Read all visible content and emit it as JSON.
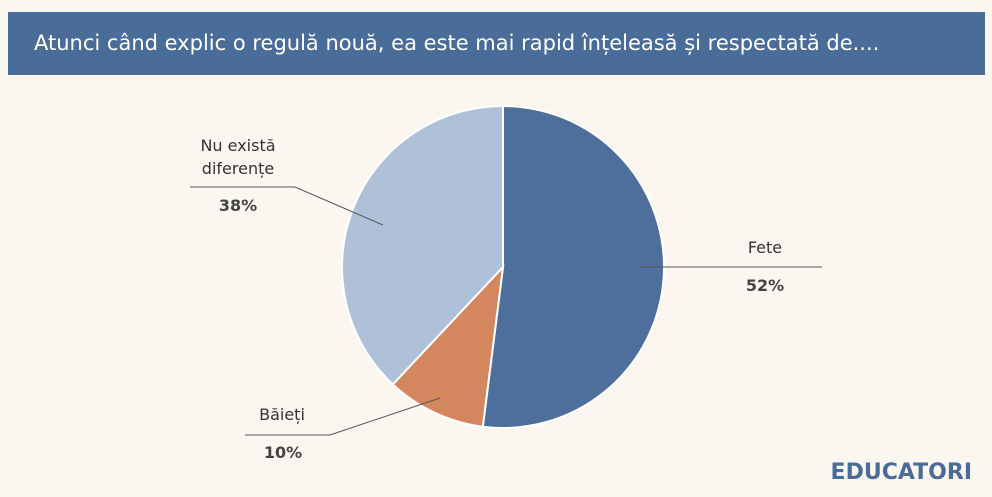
{
  "chart_data": {
    "type": "pie",
    "title": "Atunci când explic o regulă nouă, ea este mai rapid înțeleasă și respectată de....",
    "categories": [
      "Fete",
      "Băieți",
      "Nu există diferențe"
    ],
    "values": [
      52,
      10,
      38
    ],
    "value_labels": [
      "52%",
      "10%",
      "38%"
    ],
    "colors": [
      "#4e6f9b",
      "#d4875f",
      "#afc1d8"
    ]
  },
  "brand": "EDUCATORI"
}
